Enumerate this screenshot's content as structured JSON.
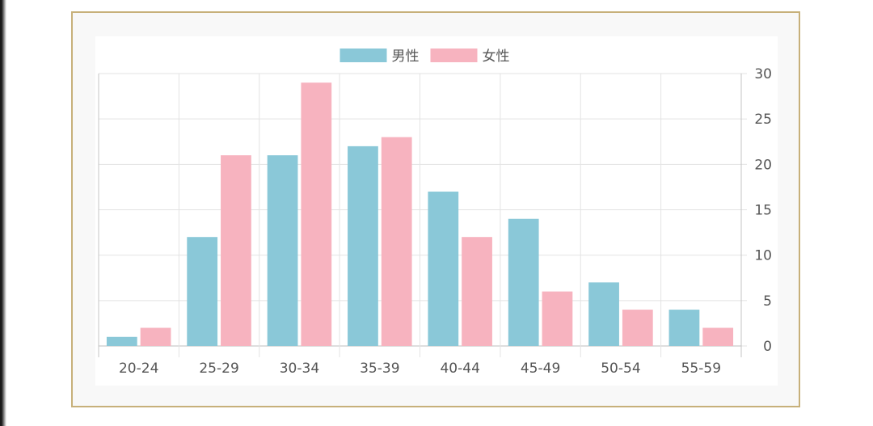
{
  "chart_data": {
    "type": "bar",
    "categories": [
      "20-24",
      "25-29",
      "30-34",
      "35-39",
      "40-44",
      "45-49",
      "50-54",
      "55-59"
    ],
    "series": [
      {
        "name": "男性",
        "color": "#8ac8d8",
        "values": [
          1,
          12,
          21,
          22,
          17,
          14,
          7,
          4
        ]
      },
      {
        "name": "女性",
        "color": "#f7b3bf",
        "values": [
          2,
          21,
          29,
          23,
          12,
          6,
          4,
          2
        ]
      }
    ],
    "y_ticks": [
      "0",
      "5",
      "10",
      "15",
      "20",
      "25",
      "30"
    ],
    "ylim": [
      0,
      30
    ],
    "y_axis_side": "right",
    "legend_position": "top-center",
    "grid": true
  },
  "colors": {
    "frame_border": "#c7b07a",
    "grid": "#e3e3e3",
    "tick_text": "#555555"
  }
}
